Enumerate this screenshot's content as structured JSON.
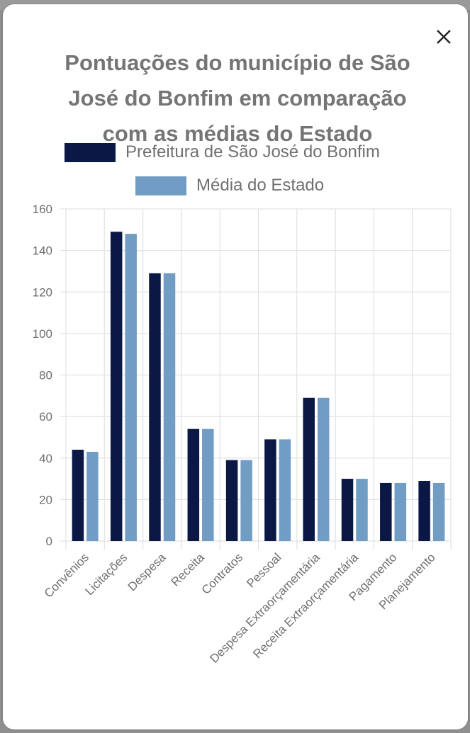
{
  "modal": {
    "close_icon": "close-icon"
  },
  "chart_data": {
    "type": "bar",
    "title_lines": [
      "Pontuações do município de São",
      "José do Bonfim em comparação",
      "com as médias do Estado"
    ],
    "title": "Pontuações do município de São José do Bonfim em comparação com as médias do Estado",
    "xlabel": "",
    "ylabel": "",
    "ylim": [
      0,
      160
    ],
    "yticks": [
      0,
      20,
      40,
      60,
      80,
      100,
      120,
      140,
      160
    ],
    "grid": true,
    "legend_position": "top-center",
    "categories": [
      "Convênios",
      "Licitações",
      "Despesa",
      "Receita",
      "Contratos",
      "Pessoal",
      "Despesa Extraorçamentária",
      "Receita Extraorçamentária",
      "Pagamento",
      "Planejamento"
    ],
    "series": [
      {
        "name": "Prefeitura de São José do Bonfim",
        "color": "#0b1845",
        "values": [
          44,
          149,
          129,
          54,
          39,
          49,
          69,
          30,
          28,
          29
        ]
      },
      {
        "name": "Média do Estado",
        "color": "#719dc4",
        "values": [
          43,
          148,
          129,
          54,
          39,
          49,
          69,
          30,
          28,
          28
        ]
      }
    ]
  }
}
